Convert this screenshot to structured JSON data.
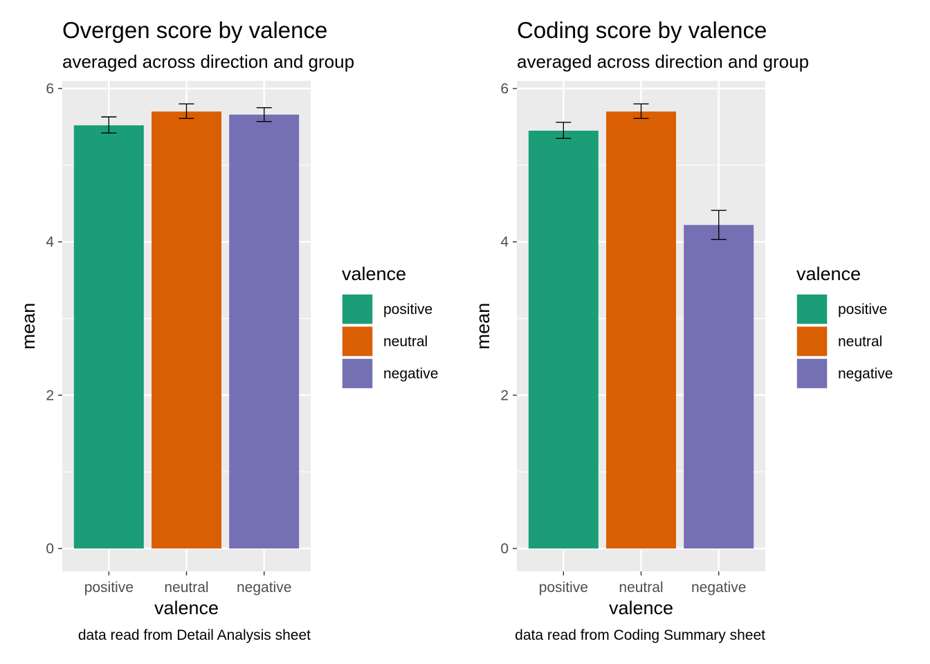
{
  "colors": {
    "positive": "#1b9e77",
    "neutral": "#d95f02",
    "negative": "#7570b3",
    "panel_background": "#ebebeb",
    "grid": "#ffffff"
  },
  "chart_data": [
    {
      "type": "bar",
      "title": "Overgen score by valence",
      "subtitle": "averaged across direction and group",
      "caption": "data read from Detail Analysis sheet",
      "xlabel": "valence",
      "ylabel": "mean",
      "categories": [
        "positive",
        "neutral",
        "negative"
      ],
      "values": [
        5.52,
        5.7,
        5.66
      ],
      "error_low": [
        5.42,
        5.61,
        5.57
      ],
      "error_high": [
        5.63,
        5.8,
        5.75
      ],
      "ylim": [
        -0.25,
        6.1
      ],
      "yticks": [
        0,
        2,
        4,
        6
      ],
      "grid": true,
      "legend": {
        "title": "valence",
        "position": "right",
        "items": [
          "positive",
          "neutral",
          "negative"
        ]
      }
    },
    {
      "type": "bar",
      "title": "Coding score by valence",
      "subtitle": "averaged across direction and group",
      "caption": "data read from Coding Summary sheet",
      "xlabel": "valence",
      "ylabel": "mean",
      "categories": [
        "positive",
        "neutral",
        "negative"
      ],
      "values": [
        5.45,
        5.7,
        4.22
      ],
      "error_low": [
        5.35,
        5.61,
        4.03
      ],
      "error_high": [
        5.56,
        5.8,
        4.41
      ],
      "ylim": [
        -0.25,
        6.1
      ],
      "yticks": [
        0,
        2,
        4,
        6
      ],
      "grid": true,
      "legend": {
        "title": "valence",
        "position": "right",
        "items": [
          "positive",
          "neutral",
          "negative"
        ]
      }
    }
  ]
}
